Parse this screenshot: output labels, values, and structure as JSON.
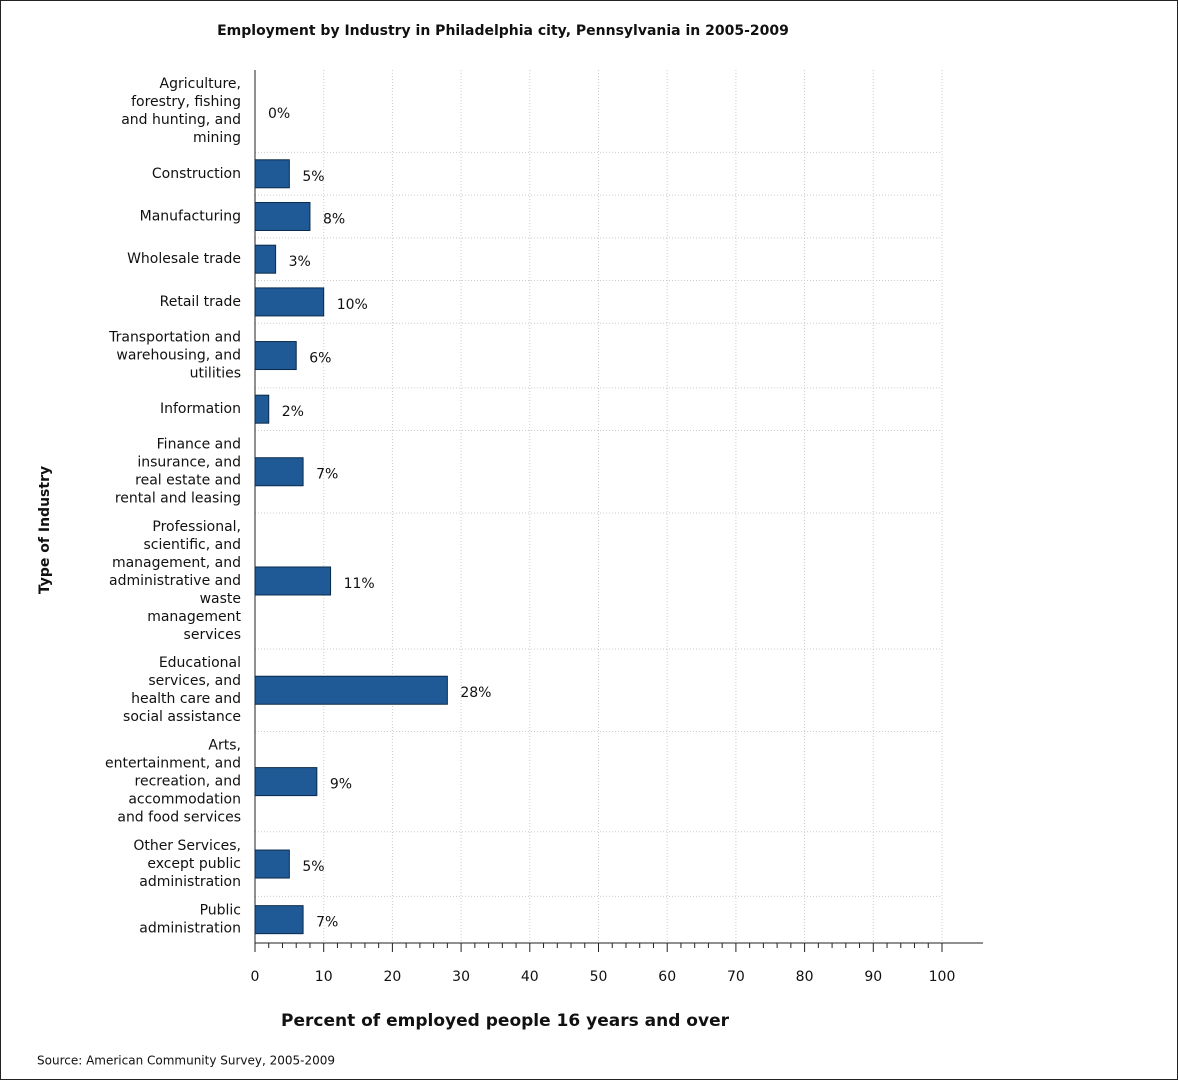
{
  "chart_data": {
    "type": "bar",
    "orientation": "horizontal",
    "title": "Employment by Industry in Philadelphia city, Pennsylvania in 2005-2009",
    "x_label": "Percent of employed people 16 years and over",
    "y_label": "Type of Industry",
    "source": "Source: American Community Survey, 2005-2009",
    "categories": [
      "Agriculture,\nforestry, fishing\nand hunting, and\nmining",
      "Construction",
      "Manufacturing",
      "Wholesale trade",
      "Retail trade",
      "Transportation and\nwarehousing, and\nutilities",
      "Information",
      "Finance and\ninsurance, and\nreal estate and\nrental and leasing",
      "Professional,\nscientific, and\nmanagement, and\nadministrative and\nwaste\nmanagement\nservices",
      "Educational\nservices, and\nhealth care and\nsocial assistance",
      "Arts,\nentertainment, and\nrecreation, and\naccommodation\nand food services",
      "Other Services,\nexcept public\nadministration",
      "Public\nadministration"
    ],
    "values": [
      0,
      5,
      8,
      3,
      10,
      6,
      2,
      7,
      11,
      28,
      9,
      5,
      7
    ],
    "value_labels": [
      "0%",
      "5%",
      "8%",
      "3%",
      "10%",
      "6%",
      "2%",
      "7%",
      "11%",
      "28%",
      "9%",
      "5%",
      "7%"
    ],
    "color": "#1f5a96",
    "xlim": [
      0,
      100
    ],
    "xticks": [
      0,
      10,
      20,
      30,
      40,
      50,
      60,
      70,
      80,
      90,
      100
    ],
    "grid": true
  }
}
